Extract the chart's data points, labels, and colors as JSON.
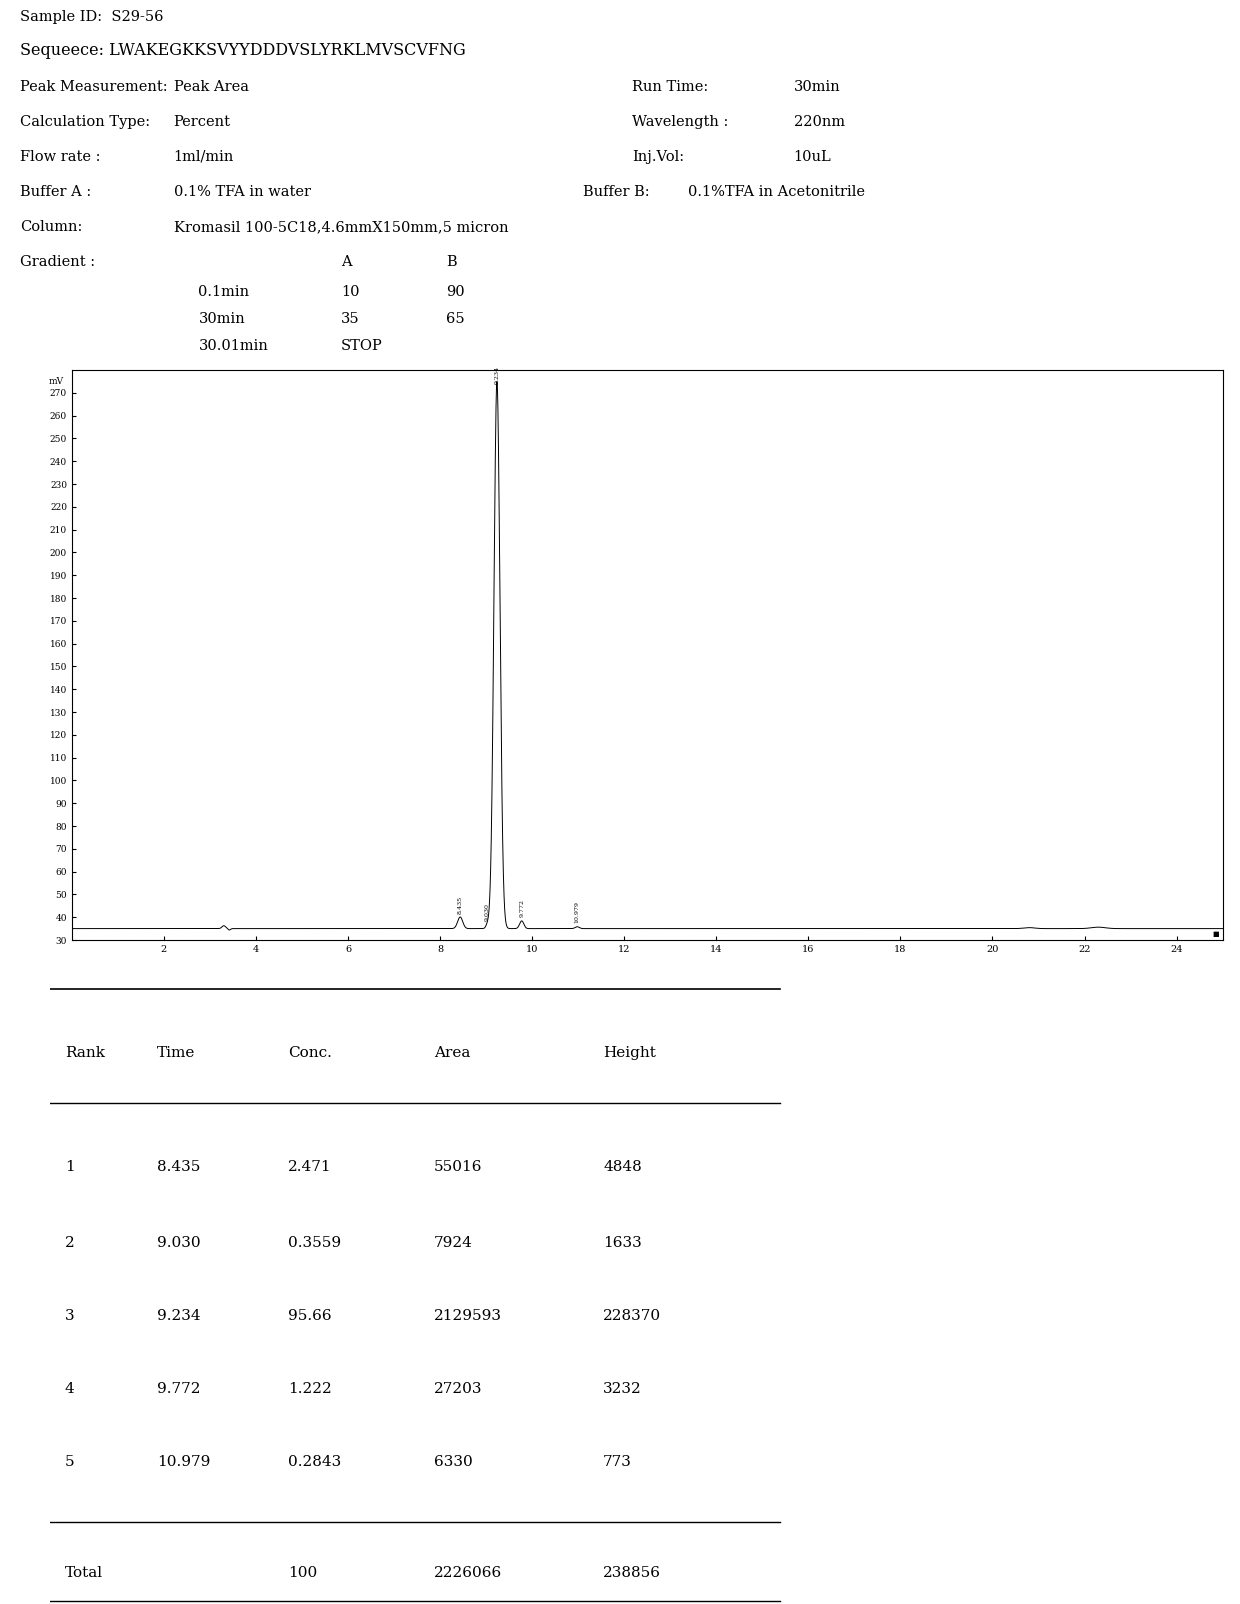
{
  "sample_id": "Sample ID:  S29-56",
  "sequence_label": "Sequeece:",
  "sequence_val": "LWAKEGKKSVYYDDDVSLYRKLMVSCVFNG",
  "peak_measurement_label": "Peak Measurement:",
  "peak_measurement_val": "Peak Area",
  "run_time_label": "Run Time:",
  "run_time_val": "30min",
  "calc_type_label": "Calculation Type:",
  "calc_type_val": "Percent",
  "wavelength_label": "Wavelength :",
  "wavelength_val": "220nm",
  "flowrate_label": "Flow rate :",
  "flowrate_val": "1ml/min",
  "injvol_label": "Inj.Vol:",
  "injvol_val": "10uL",
  "bufferA_label": "Buffer A :",
  "bufferA_val": "0.1% TFA in water",
  "bufferB_label": "Buffer B:",
  "bufferB_val": "0.1%TFA in Acetonitrile",
  "column_label": "Column:",
  "column_val": "Kromasil 100-5C18,4.6mmX150mm,5 micron",
  "gradient_label": "Gradient :",
  "gradient_A_header": "A",
  "gradient_B_header": "B",
  "gradient_rows": [
    [
      "0.1min",
      "10",
      "90"
    ],
    [
      "30min",
      "35",
      "65"
    ],
    [
      "30.01min",
      "STOP",
      ""
    ]
  ],
  "x_ticks": [
    2,
    4,
    6,
    8,
    10,
    12,
    14,
    16,
    18,
    20,
    22,
    24
  ],
  "x_min": 0,
  "x_max": 25,
  "y_min": 30,
  "y_max": 280,
  "ytick_vals": [
    270,
    260,
    250,
    240,
    230,
    220,
    210,
    200,
    190,
    180,
    170,
    160,
    150,
    140,
    130,
    120,
    110,
    100,
    90,
    80,
    70,
    60,
    50,
    40,
    30
  ],
  "table_headers": [
    "Rank",
    "Time",
    "Conc.",
    "Area",
    "Height"
  ],
  "table_rows": [
    [
      "1",
      "8.435",
      "2.471",
      "55016",
      "4848"
    ],
    [
      "2",
      "9.030",
      "0.3559",
      "7924",
      "1633"
    ],
    [
      "3",
      "9.234",
      "95.66",
      "2129593",
      "228370"
    ],
    [
      "4",
      "9.772",
      "1.222",
      "27203",
      "3232"
    ],
    [
      "5",
      "10.979",
      "0.2843",
      "6330",
      "773"
    ]
  ],
  "total_row": [
    "Total",
    "",
    "100",
    "2226066",
    "238856"
  ],
  "bg_color": "#ffffff",
  "text_color": "#000000",
  "line_color": "#000000",
  "font_family": "DejaVu Serif"
}
